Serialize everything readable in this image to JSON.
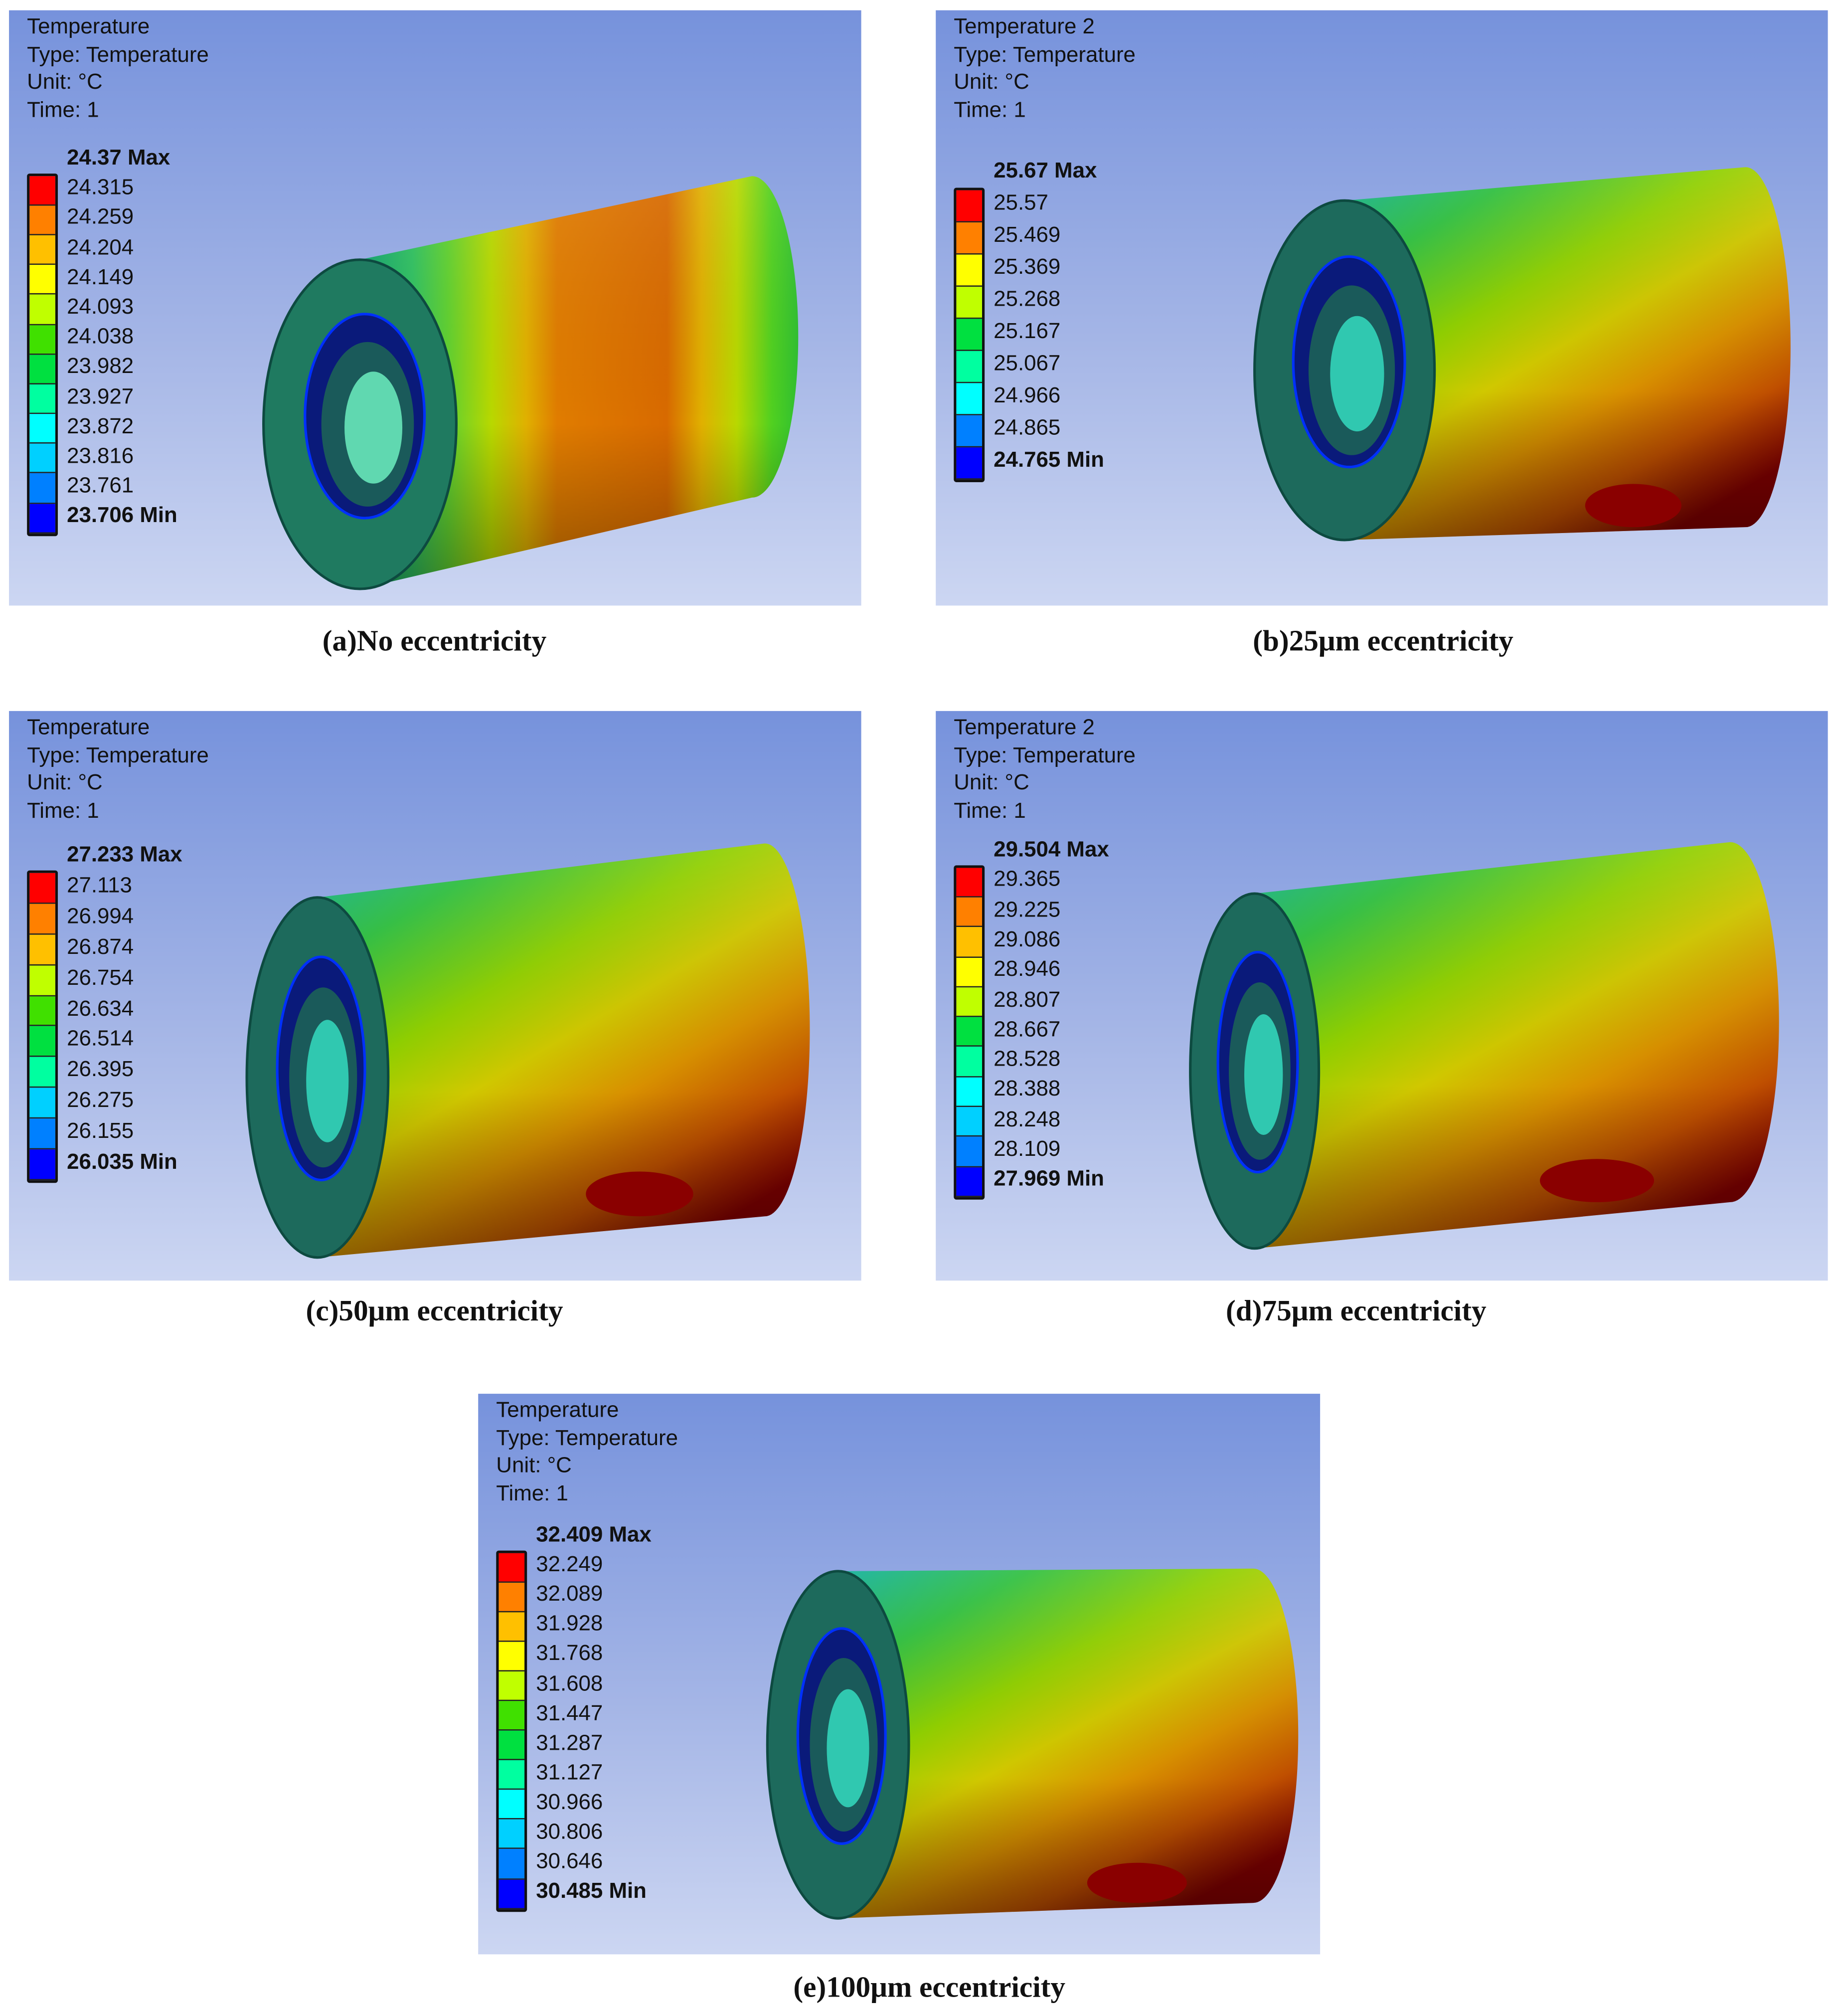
{
  "band_colors": [
    "#ff0000",
    "#ff8000",
    "#ffc000",
    "#ffff00",
    "#c0ff00",
    "#40e000",
    "#00e040",
    "#00ffa0",
    "#00ffff",
    "#00d0ff",
    "#0080ff",
    "#0000ff"
  ],
  "panels": [
    {
      "id": "a",
      "title": "Temperature",
      "type": "Type: Temperature",
      "unit": "Unit: °C",
      "time": "Time: 1",
      "max": "24.37 Max",
      "min": "23.706 Min",
      "levels": [
        "24.315",
        "24.259",
        "24.204",
        "24.149",
        "24.093",
        "24.038",
        "23.982",
        "23.927",
        "23.872",
        "23.816",
        "23.761"
      ],
      "caption": "(a)No eccentricity"
    },
    {
      "id": "b",
      "title": "Temperature 2",
      "type": "Type: Temperature",
      "unit": "Unit: °C",
      "time": "Time: 1",
      "max": "25.67 Max",
      "min": "24.765 Min",
      "levels": [
        "25.57",
        "25.469",
        "25.369",
        "25.268",
        "25.167",
        "25.067",
        "24.966",
        "24.865"
      ],
      "caption": "(b)25μm eccentricity"
    },
    {
      "id": "c",
      "title": "Temperature",
      "type": "Type: Temperature",
      "unit": "Unit: °C",
      "time": "Time: 1",
      "max": "27.233 Max",
      "min": "26.035 Min",
      "levels": [
        "27.113",
        "26.994",
        "26.874",
        "26.754",
        "26.634",
        "26.514",
        "26.395",
        "26.275",
        "26.155"
      ],
      "caption": "(c)50μm eccentricity"
    },
    {
      "id": "d",
      "title": "Temperature 2",
      "type": "Type: Temperature",
      "unit": "Unit: °C",
      "time": "Time: 1",
      "max": "29.504 Max",
      "min": "27.969 Min",
      "levels": [
        "29.365",
        "29.225",
        "29.086",
        "28.946",
        "28.807",
        "28.667",
        "28.528",
        "28.388",
        "28.248",
        "28.109"
      ],
      "caption": "(d)75μm eccentricity"
    },
    {
      "id": "e",
      "title": "Temperature",
      "type": "Type: Temperature",
      "unit": "Unit: °C",
      "time": "Time: 1",
      "max": "32.409 Max",
      "min": "30.485 Min",
      "levels": [
        "32.249",
        "32.089",
        "31.928",
        "31.768",
        "31.608",
        "31.447",
        "31.287",
        "31.127",
        "30.966",
        "30.806",
        "30.646"
      ],
      "caption": "(e)100μm eccentricity"
    }
  ]
}
